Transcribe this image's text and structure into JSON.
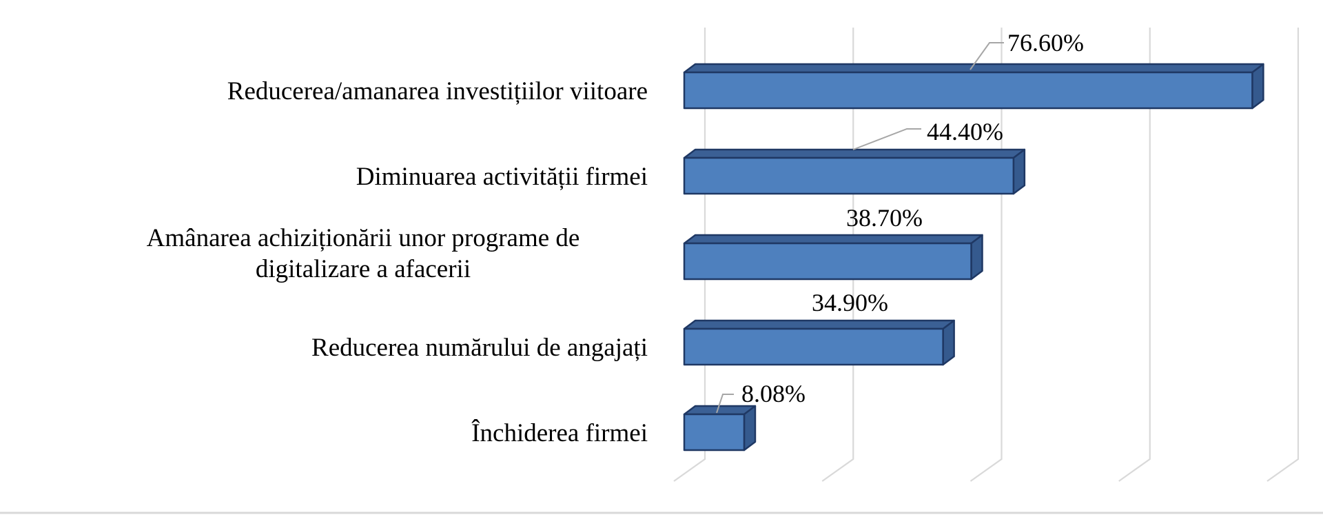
{
  "chart_data": {
    "type": "bar",
    "orientation": "horizontal",
    "style": "3d",
    "title": "",
    "xlabel": "",
    "ylabel": "",
    "xlim": [
      0,
      80
    ],
    "gridline_interval_pct": 20,
    "grid": true,
    "legend_position": "none",
    "categories": [
      {
        "label": "Reducerea/amanarea investițiilor viitoare",
        "lines": [
          "Reducerea/amanarea investițiilor viitoare"
        ]
      },
      {
        "label": "Diminuarea activității firmei",
        "lines": [
          "Diminuarea activității firmei"
        ]
      },
      {
        "label": "Amânarea achiziționării unor programe de digitalizare a afacerii",
        "lines": [
          "Amânarea achiziționării unor programe de",
          "digitalizare a afacerii"
        ]
      },
      {
        "label": "Reducerea numărului de angajați",
        "lines": [
          "Reducerea numărului de angajați"
        ]
      },
      {
        "label": "Închiderea firmei",
        "lines": [
          "Închiderea firmei"
        ]
      }
    ],
    "values": [
      76.6,
      44.4,
      38.7,
      34.9,
      8.08
    ],
    "value_labels": [
      "76.60%",
      "44.40%",
      "38.70%",
      "34.90%",
      "8.08%"
    ],
    "callouts": [
      true,
      true,
      false,
      false,
      true
    ],
    "colors": {
      "bar_front": "#4e80be",
      "bar_top": "#3b6095",
      "bar_side": "#355a8e",
      "bar_stroke": "#1f3864",
      "gridline": "#d9d9d9",
      "leader_line": "#a6a6a6",
      "text": "#000000",
      "bottom_border": "#d9d9d9",
      "background": "#ffffff"
    }
  }
}
